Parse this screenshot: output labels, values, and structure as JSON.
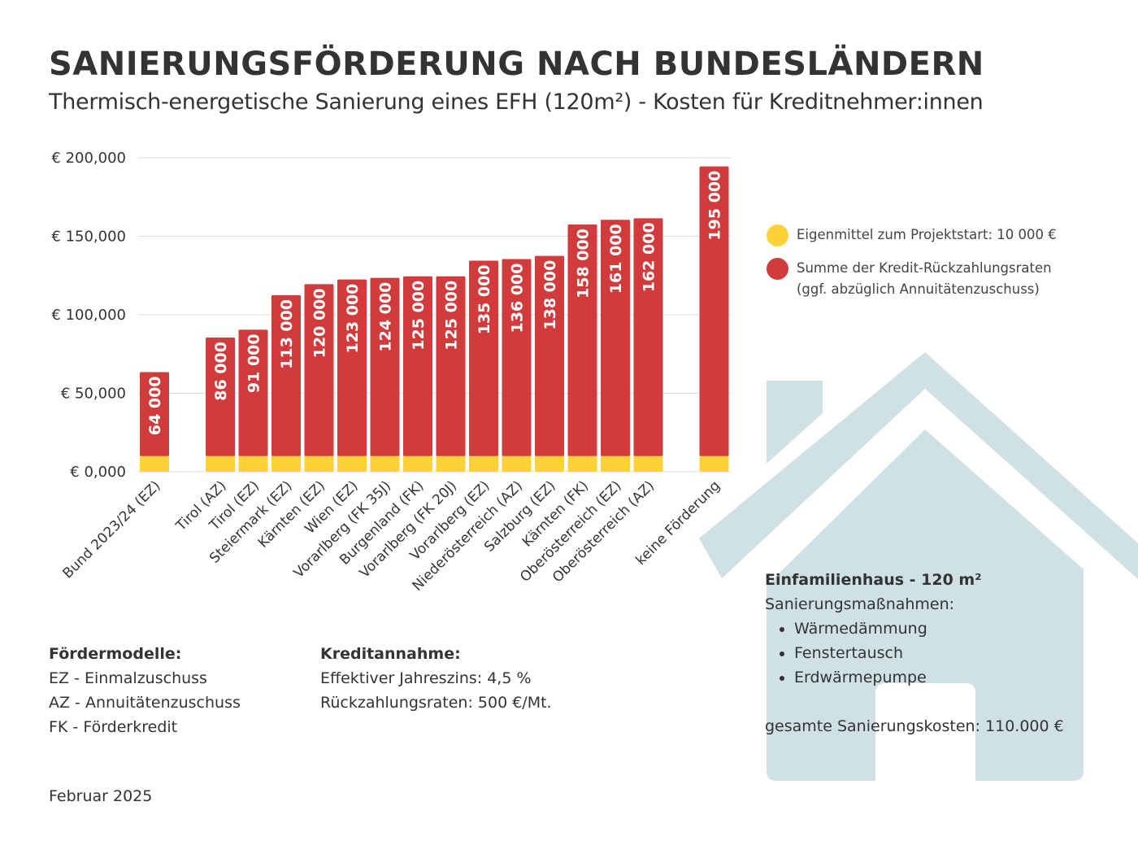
{
  "title": "SANIERUNGSFÖRDERUNG NACH BUNDESLÄNDERN",
  "subtitle": "Thermisch-energetische Sanierung eines EFH (120m²) - Kosten für Kreditnehmer:innen",
  "colors": {
    "eigenmittel": "#fcd237",
    "kredit": "#d13b3b",
    "house": "#cfe1e5"
  },
  "legend": [
    {
      "label": "Eigenmittel zum Projektstart: 10 000 €",
      "color": "#fcd237"
    },
    {
      "label": "Summe der Kredit-Rückzahlungsraten",
      "label2": "(ggf. abzüglich Annuitätenzuschuss)",
      "color": "#d13b3b"
    }
  ],
  "chart_data": {
    "type": "bar",
    "stacked": true,
    "categories": [
      "Bund 2023/24 (EZ)",
      "Tirol (AZ)",
      "Tirol (EZ)",
      "Steiermark (EZ)",
      "Kärnten (EZ)",
      "Wien (EZ)",
      "Vorarlberg (FK 35J)",
      "Burgenland (FK)",
      "Vorarlberg (FK 20J)",
      "Vorarlberg (EZ)",
      "Niederösterreich (AZ)",
      "Salzburg (EZ)",
      "Kärnten (FK)",
      "Oberösterreich (EZ)",
      "Oberösterreich (AZ)",
      "keine Förderung"
    ],
    "series": [
      {
        "name": "Eigenmittel zum Projektstart: 10 000 €",
        "values": [
          10000,
          10000,
          10000,
          10000,
          10000,
          10000,
          10000,
          10000,
          10000,
          10000,
          10000,
          10000,
          10000,
          10000,
          10000,
          10000
        ]
      },
      {
        "name": "Summe der Kredit-Rückzahlungsraten (ggf. abzüglich Annuitätenzuschuss)",
        "values": [
          54000,
          76000,
          81000,
          103000,
          110000,
          113000,
          114000,
          115000,
          115000,
          125000,
          126000,
          128000,
          148000,
          151000,
          152000,
          185000
        ]
      }
    ],
    "data_labels": [
      "64 000",
      "86 000",
      "91 000",
      "113 000",
      "120 000",
      "123 000",
      "124 000",
      "125 000",
      "125 000",
      "135 000",
      "136 000",
      "138 000",
      "158 000",
      "161 000",
      "162 000",
      "195 000"
    ],
    "totals": [
      64000,
      86000,
      91000,
      113000,
      120000,
      123000,
      124000,
      125000,
      125000,
      135000,
      136000,
      138000,
      158000,
      161000,
      162000,
      195000
    ],
    "yticks": [
      "€ 0,000",
      "€ 50,000",
      "€ 100,000",
      "€ 150,000",
      "€ 200,000"
    ],
    "ytick_values": [
      0,
      50000,
      100000,
      150000,
      200000
    ],
    "ylim": [
      0,
      200000
    ],
    "grid": true,
    "legend_position": "right"
  },
  "house": {
    "heading": "Einfamilienhaus - 120 m²",
    "measures_label": "Sanierungsmaßnahmen:",
    "measures": [
      "Wärmedämmung",
      "Fenstertausch",
      "Erdwärmepumpe"
    ],
    "total_cost": "gesamte Sanierungskosten: 110.000 €"
  },
  "foerdermodelle": {
    "heading": "Fördermodelle:",
    "items": [
      "EZ - Einmalzuschuss",
      "AZ - Annuitätenzuschuss",
      "FK - Förderkredit"
    ]
  },
  "kredit": {
    "heading": "Kreditannahme:",
    "items": [
      "Effektiver Jahreszins: 4,5 %",
      "Rückzahlungsraten: 500 €/Mt."
    ]
  },
  "date": "Februar 2025"
}
